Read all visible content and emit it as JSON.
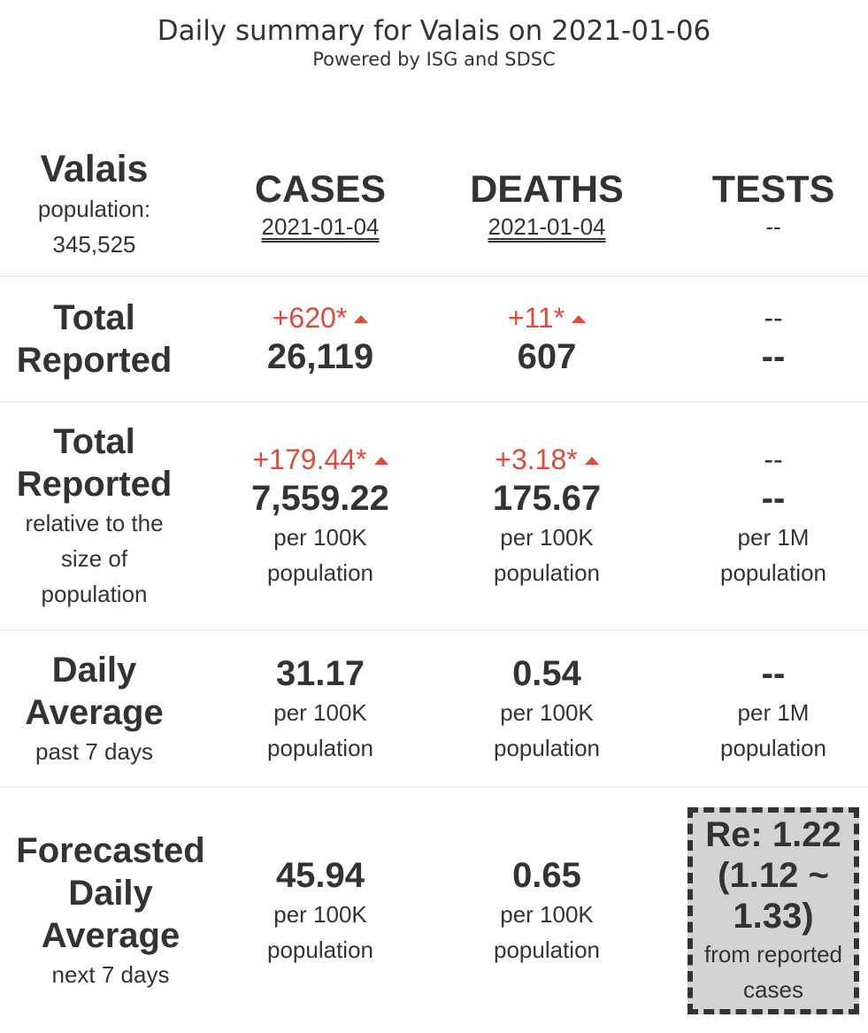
{
  "header": {
    "title": "Daily summary for Valais on 2021-01-06",
    "subtitle": "Powered by ISG and SDSC"
  },
  "region": {
    "name": "Valais",
    "population_label": "population:",
    "population_value": "345,525"
  },
  "columns": {
    "cases": {
      "label": "CASES",
      "date": "2021-01-04"
    },
    "deaths": {
      "label": "DEATHS",
      "date": "2021-01-04"
    },
    "tests": {
      "label": "TESTS",
      "date": "--"
    }
  },
  "total_reported": {
    "label_line1": "Total",
    "label_line2": "Reported",
    "cases": {
      "delta": "+620*",
      "value": "26,119"
    },
    "deaths": {
      "delta": "+11*",
      "value": "607"
    },
    "tests": {
      "delta": "--",
      "value": "--"
    }
  },
  "total_relative": {
    "label_line1": "Total",
    "label_line2": "Reported",
    "note_line1": "relative to the",
    "note_line2": "size of",
    "note_line3": "population",
    "cases": {
      "delta": "+179.44*",
      "value": "7,559.22",
      "unit_line1": "per 100K",
      "unit_line2": "population"
    },
    "deaths": {
      "delta": "+3.18*",
      "value": "175.67",
      "unit_line1": "per 100K",
      "unit_line2": "population"
    },
    "tests": {
      "delta": "--",
      "value": "--",
      "unit_line1": "per 1M",
      "unit_line2": "population"
    }
  },
  "daily_average": {
    "label_line1": "Daily",
    "label_line2": "Average",
    "note": "past 7 days",
    "cases": {
      "value": "31.17",
      "unit_line1": "per 100K",
      "unit_line2": "population"
    },
    "deaths": {
      "value": "0.54",
      "unit_line1": "per 100K",
      "unit_line2": "population"
    },
    "tests": {
      "value": "--",
      "unit_line1": "per 1M",
      "unit_line2": "population"
    }
  },
  "forecast": {
    "label_line1": "Forecasted",
    "label_line2": "Daily",
    "label_line3": "Average",
    "note": "next 7 days",
    "cases": {
      "value": "45.94",
      "unit_line1": "per 100K",
      "unit_line2": "population"
    },
    "deaths": {
      "value": "0.65",
      "unit_line1": "per 100K",
      "unit_line2": "population"
    },
    "re": {
      "line1": "Re: 1.22",
      "line2": "(1.12 ~",
      "line3": "1.33)",
      "note_line1": "from reported",
      "note_line2": "cases"
    }
  },
  "colors": {
    "text": "#333333",
    "increase": "#e04a3a",
    "re_box_bg": "#d3d3d3",
    "row_divider": "#eeeeee"
  }
}
